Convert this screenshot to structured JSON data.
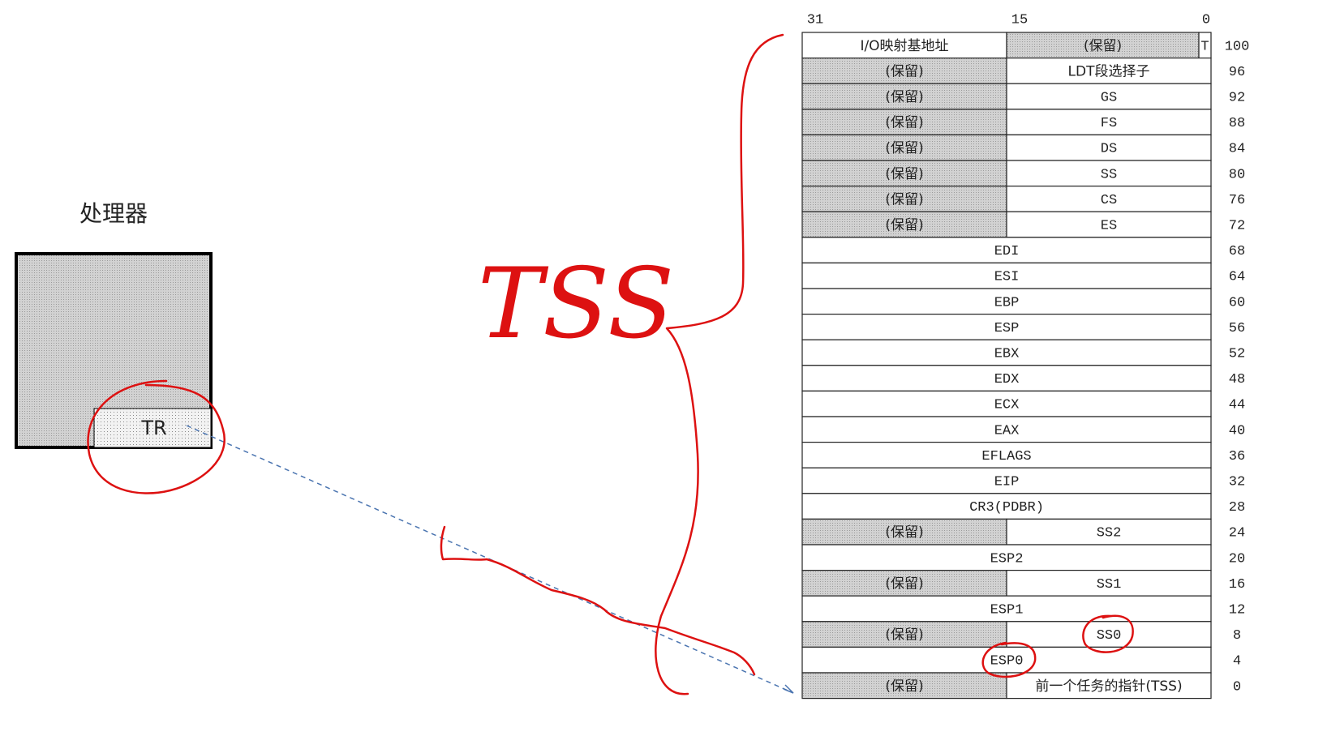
{
  "processor": {
    "title": "处理器",
    "register": "TR"
  },
  "annotation": "TSS",
  "bit_labels": [
    "31",
    "15",
    "0"
  ],
  "table": {
    "rows": [
      {
        "cells": [
          {
            "text": "I/O映射基地址",
            "shaded": false
          },
          {
            "text": "(保留)",
            "shaded": true
          },
          {
            "text": "T",
            "shaded": false
          }
        ],
        "offset": "100"
      },
      {
        "cells": [
          {
            "text": "(保留)",
            "shaded": true
          },
          {
            "text": "LDT段选择子",
            "shaded": false
          }
        ],
        "offset": "96"
      },
      {
        "cells": [
          {
            "text": "(保留)",
            "shaded": true
          },
          {
            "text": "GS",
            "shaded": false
          }
        ],
        "offset": "92"
      },
      {
        "cells": [
          {
            "text": "(保留)",
            "shaded": true
          },
          {
            "text": "FS",
            "shaded": false
          }
        ],
        "offset": "88"
      },
      {
        "cells": [
          {
            "text": "(保留)",
            "shaded": true
          },
          {
            "text": "DS",
            "shaded": false
          }
        ],
        "offset": "84"
      },
      {
        "cells": [
          {
            "text": "(保留)",
            "shaded": true
          },
          {
            "text": "SS",
            "shaded": false
          }
        ],
        "offset": "80"
      },
      {
        "cells": [
          {
            "text": "(保留)",
            "shaded": true
          },
          {
            "text": "CS",
            "shaded": false
          }
        ],
        "offset": "76"
      },
      {
        "cells": [
          {
            "text": "(保留)",
            "shaded": true
          },
          {
            "text": "ES",
            "shaded": false
          }
        ],
        "offset": "72"
      },
      {
        "cells": [
          {
            "text": "EDI",
            "shaded": false
          }
        ],
        "offset": "68"
      },
      {
        "cells": [
          {
            "text": "ESI",
            "shaded": false
          }
        ],
        "offset": "64"
      },
      {
        "cells": [
          {
            "text": "EBP",
            "shaded": false
          }
        ],
        "offset": "60"
      },
      {
        "cells": [
          {
            "text": "ESP",
            "shaded": false
          }
        ],
        "offset": "56"
      },
      {
        "cells": [
          {
            "text": "EBX",
            "shaded": false
          }
        ],
        "offset": "52"
      },
      {
        "cells": [
          {
            "text": "EDX",
            "shaded": false
          }
        ],
        "offset": "48"
      },
      {
        "cells": [
          {
            "text": "ECX",
            "shaded": false
          }
        ],
        "offset": "44"
      },
      {
        "cells": [
          {
            "text": "EAX",
            "shaded": false
          }
        ],
        "offset": "40"
      },
      {
        "cells": [
          {
            "text": "EFLAGS",
            "shaded": false
          }
        ],
        "offset": "36"
      },
      {
        "cells": [
          {
            "text": "EIP",
            "shaded": false
          }
        ],
        "offset": "32"
      },
      {
        "cells": [
          {
            "text": "CR3(PDBR)",
            "shaded": false
          }
        ],
        "offset": "28"
      },
      {
        "cells": [
          {
            "text": "(保留)",
            "shaded": true
          },
          {
            "text": "SS2",
            "shaded": false
          }
        ],
        "offset": "24"
      },
      {
        "cells": [
          {
            "text": "ESP2",
            "shaded": false
          }
        ],
        "offset": "20"
      },
      {
        "cells": [
          {
            "text": "(保留)",
            "shaded": true
          },
          {
            "text": "SS1",
            "shaded": false
          }
        ],
        "offset": "16"
      },
      {
        "cells": [
          {
            "text": "ESP1",
            "shaded": false
          }
        ],
        "offset": "12"
      },
      {
        "cells": [
          {
            "text": "(保留)",
            "shaded": true
          },
          {
            "text": "SS0",
            "shaded": false
          }
        ],
        "offset": "8"
      },
      {
        "cells": [
          {
            "text": "ESP0",
            "shaded": false
          }
        ],
        "offset": "4"
      },
      {
        "cells": [
          {
            "text": "(保留)",
            "shaded": true
          },
          {
            "text": "前一个任务的指针(TSS)",
            "shaded": false
          }
        ],
        "offset": "0"
      }
    ]
  }
}
